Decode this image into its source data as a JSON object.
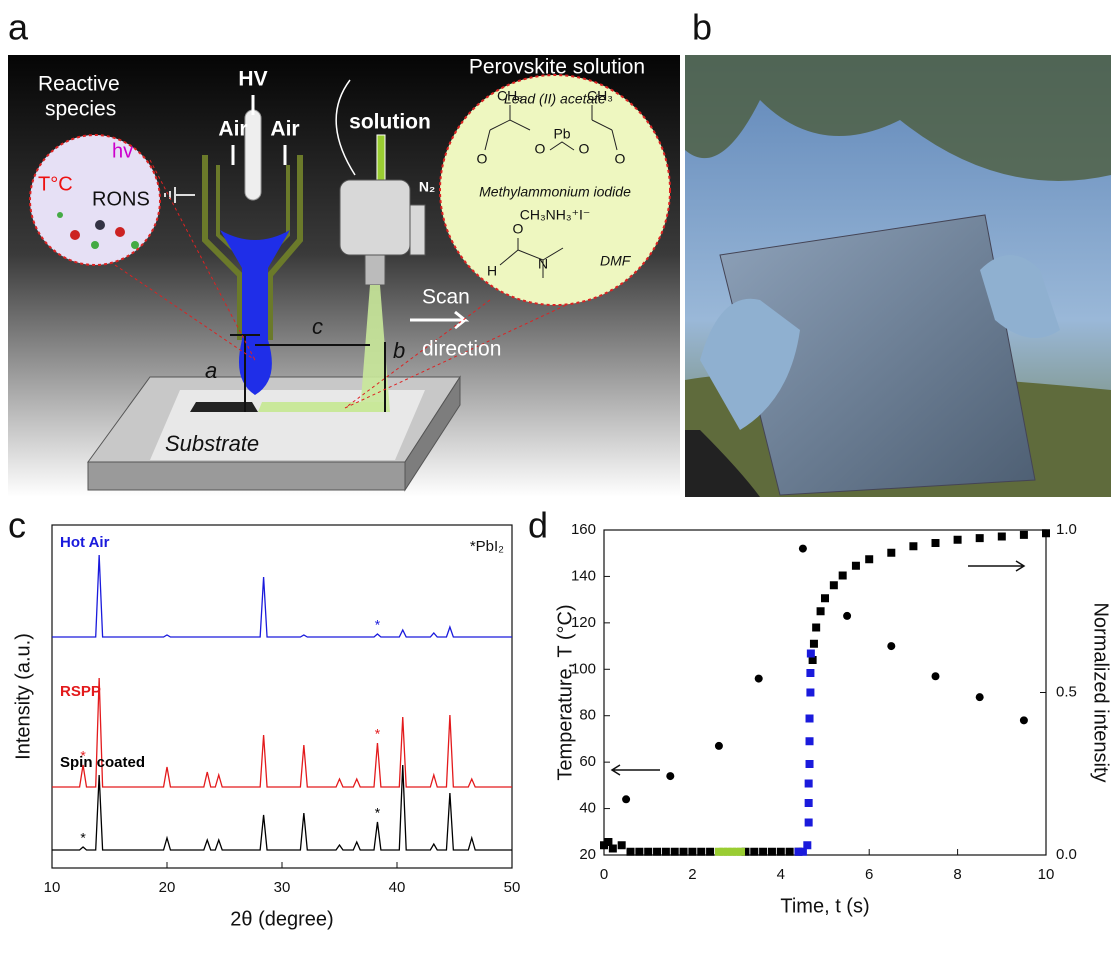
{
  "panel_labels": [
    "a",
    "b",
    "c",
    "d"
  ],
  "diagram": {
    "reactive_species": [
      "Reactive",
      "species"
    ],
    "hv": "hv",
    "temperature": "T°C",
    "rons": "RONS",
    "high_voltage": "HV",
    "air": [
      "Air",
      "Air"
    ],
    "solution": "solution",
    "nitrogen": "N₂",
    "perovskite_solution": "Perovskite solution",
    "lead_acetate": "Lead (II) acetate",
    "acetate_atoms": [
      "CH₃",
      "Pb",
      "O",
      "O",
      "CH₃",
      "O",
      "O"
    ],
    "methylammonium_iodide": "Methylammonium iodide",
    "mai_formula": "CH₃NH₃⁺I⁻",
    "dmf_atoms": [
      "O",
      "H",
      "N"
    ],
    "dmf": "DMF",
    "scan_direction": [
      "Scan",
      "direction"
    ],
    "dimensions": [
      "a",
      "b",
      "c"
    ],
    "substrate": "Substrate"
  },
  "chart_data": [
    {
      "type": "line",
      "x": [
        10,
        12.4,
        12.7,
        13.0,
        13.8,
        14.1,
        14.4,
        19.7,
        20.0,
        20.3,
        23.2,
        23.5,
        23.8,
        24.2,
        24.5,
        24.8,
        28.1,
        28.4,
        28.7,
        31.6,
        31.9,
        32.2,
        34.7,
        35.0,
        35.3,
        36.2,
        36.5,
        36.8,
        38.0,
        38.3,
        38.6,
        40.2,
        40.5,
        40.8,
        42.9,
        43.2,
        43.5,
        44.3,
        44.6,
        44.9,
        46.2,
        46.5,
        46.8,
        50
      ],
      "series": [
        {
          "name": "Hot Air",
          "color": "#1a1adc",
          "values": [
            0,
            0,
            0,
            0,
            0,
            82,
            0,
            0,
            2,
            0,
            0,
            0,
            0,
            0,
            0,
            0,
            0,
            60,
            0,
            0,
            2,
            0,
            0,
            0,
            0,
            0,
            0,
            0,
            0,
            3,
            0,
            0,
            7,
            0,
            0,
            4,
            0,
            0,
            10,
            0,
            0,
            0,
            0,
            0
          ],
          "markers": [
            {
              "text": "*",
              "x": 38.3
            }
          ]
        },
        {
          "name": "RSPP",
          "color": "#e31a1c",
          "values": [
            0,
            0,
            22,
            0,
            0,
            109,
            0,
            0,
            20,
            0,
            0,
            15,
            0,
            0,
            12,
            0,
            0,
            52,
            0,
            0,
            42,
            0,
            0,
            8,
            0,
            0,
            8,
            0,
            0,
            44,
            0,
            0,
            70,
            0,
            0,
            12,
            0,
            0,
            72,
            0,
            0,
            8,
            0,
            0
          ],
          "markers": [
            {
              "text": "*",
              "x": 12.7
            },
            {
              "text": "*",
              "x": 38.3
            }
          ]
        },
        {
          "name": "Spin coated",
          "color": "#000000",
          "values": [
            0,
            0,
            3,
            0,
            0,
            75,
            0,
            0,
            12,
            0,
            0,
            10,
            0,
            0,
            10,
            0,
            0,
            35,
            0,
            0,
            37,
            0,
            0,
            5,
            0,
            0,
            8,
            0,
            0,
            28,
            0,
            0,
            85,
            0,
            0,
            6,
            0,
            0,
            57,
            0,
            0,
            12,
            0,
            0
          ],
          "markers": [
            {
              "text": "*",
              "x": 12.7
            },
            {
              "text": "*",
              "x": 38.3
            }
          ]
        }
      ],
      "xlim": [
        10,
        50
      ],
      "xticks": [
        10,
        20,
        30,
        40,
        50
      ],
      "xlabel": "2θ (degree)",
      "ylabel": "Intensity (a.u.)",
      "legend_text": "*PbI₂"
    },
    {
      "type": "scatter",
      "series": [
        {
          "color": "#000000",
          "marker": "circle",
          "x": [
            0.5,
            1.5,
            2.6,
            3.5,
            4.5,
            5.5,
            6.5,
            7.5,
            8.5,
            9.5
          ],
          "values": [
            44,
            54,
            67,
            96,
            152,
            123,
            110,
            97,
            88,
            78
          ]
        },
        {
          "axis": "y2",
          "color": "#000000",
          "marker": "square",
          "x": [
            0,
            0.1,
            0.2,
            0.4,
            0.6,
            0.8,
            1.0,
            1.2,
            1.4,
            1.6,
            1.8,
            2.0,
            2.2,
            2.4,
            3.2,
            3.4,
            3.6,
            3.8,
            4.0,
            4.2,
            4.4,
            4.72,
            4.75,
            4.8,
            4.9,
            5.0,
            5.2,
            5.4,
            5.7,
            6.0,
            6.5,
            7.0,
            7.5,
            8.0,
            8.5,
            9.0,
            9.5,
            10
          ],
          "values": [
            0.03,
            0.04,
            0.02,
            0.03,
            0.01,
            0.01,
            0.01,
            0.01,
            0.01,
            0.01,
            0.01,
            0.01,
            0.01,
            0.01,
            0.01,
            0.01,
            0.01,
            0.01,
            0.01,
            0.01,
            0.01,
            0.6,
            0.65,
            0.7,
            0.75,
            0.79,
            0.83,
            0.86,
            0.89,
            0.91,
            0.93,
            0.95,
            0.96,
            0.97,
            0.975,
            0.98,
            0.985,
            0.99
          ]
        },
        {
          "axis": "y2",
          "color": "#1a1adc",
          "marker": "square",
          "x": [
            4.4,
            4.5,
            4.6,
            4.63,
            4.63,
            4.63,
            4.65,
            4.65,
            4.65,
            4.67,
            4.67,
            4.68
          ],
          "values": [
            0.01,
            0.01,
            0.03,
            0.1,
            0.16,
            0.22,
            0.28,
            0.35,
            0.42,
            0.5,
            0.56,
            0.62
          ]
        },
        {
          "axis": "y2",
          "color": "#9acd32",
          "marker": "square",
          "x": [
            2.6,
            2.7,
            2.8,
            2.9,
            3.0,
            3.1
          ],
          "values": [
            0.01,
            0.01,
            0.01,
            0.01,
            0.01,
            0.01
          ]
        }
      ],
      "xlim": [
        0,
        10
      ],
      "xticks": [
        0,
        2,
        4,
        6,
        8,
        10
      ],
      "ylim": [
        20,
        160
      ],
      "yticks": [
        20,
        40,
        60,
        80,
        100,
        120,
        140,
        160
      ],
      "y2lim": [
        0,
        1
      ],
      "y2ticks": [
        {
          "value": 0,
          "label": "0.0"
        },
        {
          "value": 0.5,
          "label": "0.5"
        },
        {
          "value": 1,
          "label": "1.0"
        }
      ],
      "xlabel": "Time, t (s)",
      "ylabel": "Temperature, T (°C)",
      "y2label": "Normalized intensity"
    }
  ]
}
